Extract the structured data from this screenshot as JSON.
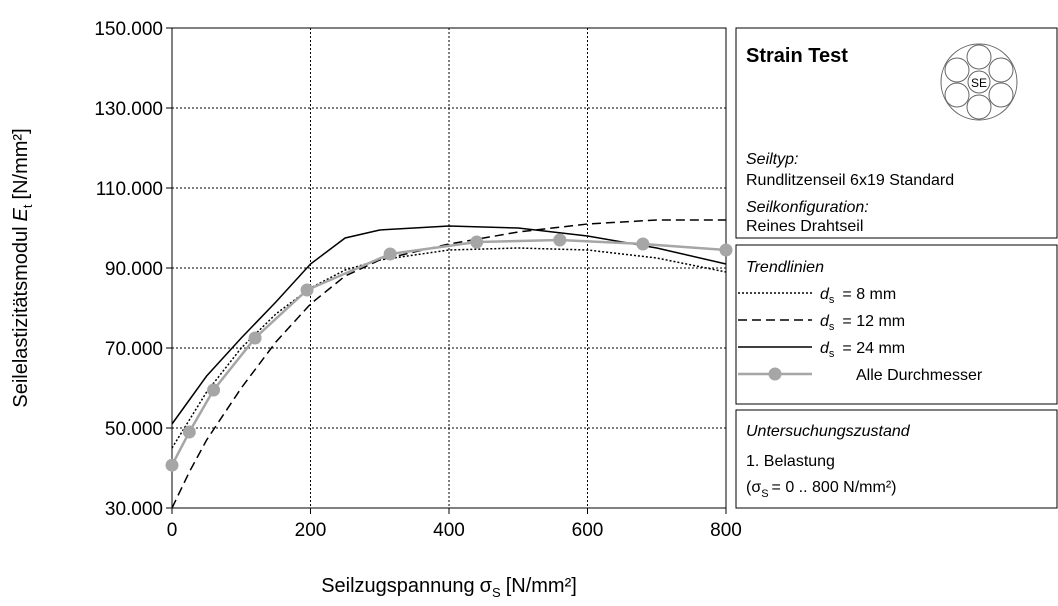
{
  "chart_data": {
    "type": "line",
    "xlabel": {
      "text": "Seilzugspannung",
      "symbol": "σ",
      "sub": "S",
      "unit": "[N/mm²]"
    },
    "ylabel": {
      "text": "Seilelastizitätsmodul",
      "symbol": "E",
      "sub": "t",
      "unit": "[N/mm²]"
    },
    "xlim": [
      0,
      800
    ],
    "xticks": [
      0,
      200,
      400,
      600,
      800
    ],
    "ylim": [
      30000,
      150000
    ],
    "yticks": [
      {
        "value": 30000,
        "label": "30.000"
      },
      {
        "value": 50000,
        "label": "50.000"
      },
      {
        "value": 70000,
        "label": "70.000"
      },
      {
        "value": 90000,
        "label": "90.000"
      },
      {
        "value": 110000,
        "label": "110.000"
      },
      {
        "value": 130000,
        "label": "130.000"
      },
      {
        "value": 150000,
        "label": "150.000"
      }
    ],
    "grid": true,
    "grid_style": "dotted",
    "legend_title": "Trendlinien",
    "legend_symbol": "d",
    "legend_symbol_sub": "s",
    "series": [
      {
        "name": "= 8 mm",
        "color": "#000000",
        "style": "dotted",
        "x": [
          0,
          25,
          50,
          100,
          150,
          200,
          250,
          300,
          400,
          500,
          600,
          700,
          800
        ],
        "values": [
          45000,
          52000,
          59000,
          70000,
          78500,
          85000,
          89500,
          92000,
          94500,
          95000,
          94500,
          92500,
          89000
        ]
      },
      {
        "name": "= 12 mm",
        "color": "#000000",
        "style": "dashed",
        "x": [
          0,
          25,
          50,
          100,
          150,
          200,
          250,
          300,
          400,
          500,
          600,
          700,
          800
        ],
        "values": [
          30000,
          39000,
          47000,
          60000,
          71500,
          81000,
          88000,
          92000,
          96000,
          99000,
          101000,
          102000,
          102000
        ]
      },
      {
        "name": "= 24 mm",
        "color": "#000000",
        "style": "solid",
        "x": [
          0,
          25,
          50,
          100,
          150,
          200,
          250,
          300,
          400,
          500,
          600,
          700,
          800
        ],
        "values": [
          51000,
          57000,
          63000,
          72500,
          81500,
          91000,
          97500,
          99500,
          100500,
          100000,
          98000,
          95000,
          91000
        ]
      },
      {
        "name": "Alle Durchmesser",
        "color": "#a6a6a6",
        "style": "solid",
        "marker": "circle",
        "x": [
          0,
          25,
          60,
          120,
          195,
          315,
          440,
          560,
          680,
          800
        ],
        "values": [
          40700,
          49000,
          59500,
          72500,
          84500,
          93500,
          96500,
          97000,
          96000,
          94500
        ]
      }
    ]
  },
  "info_panel": {
    "title": "Strain Test",
    "logo_text": "SE",
    "rope_type_label": "Seiltyp:",
    "rope_type": "Rundlitzenseil 6x19 Standard",
    "config_label": "Seilkonfiguration:",
    "config": "Reines Drahtseil",
    "condition_title": "Untersuchungszustand",
    "condition": "1. Belastung",
    "condition_range": {
      "open": "(σ",
      "sub": "S",
      "rest": "= 0 .. 800 N/mm²)"
    }
  }
}
